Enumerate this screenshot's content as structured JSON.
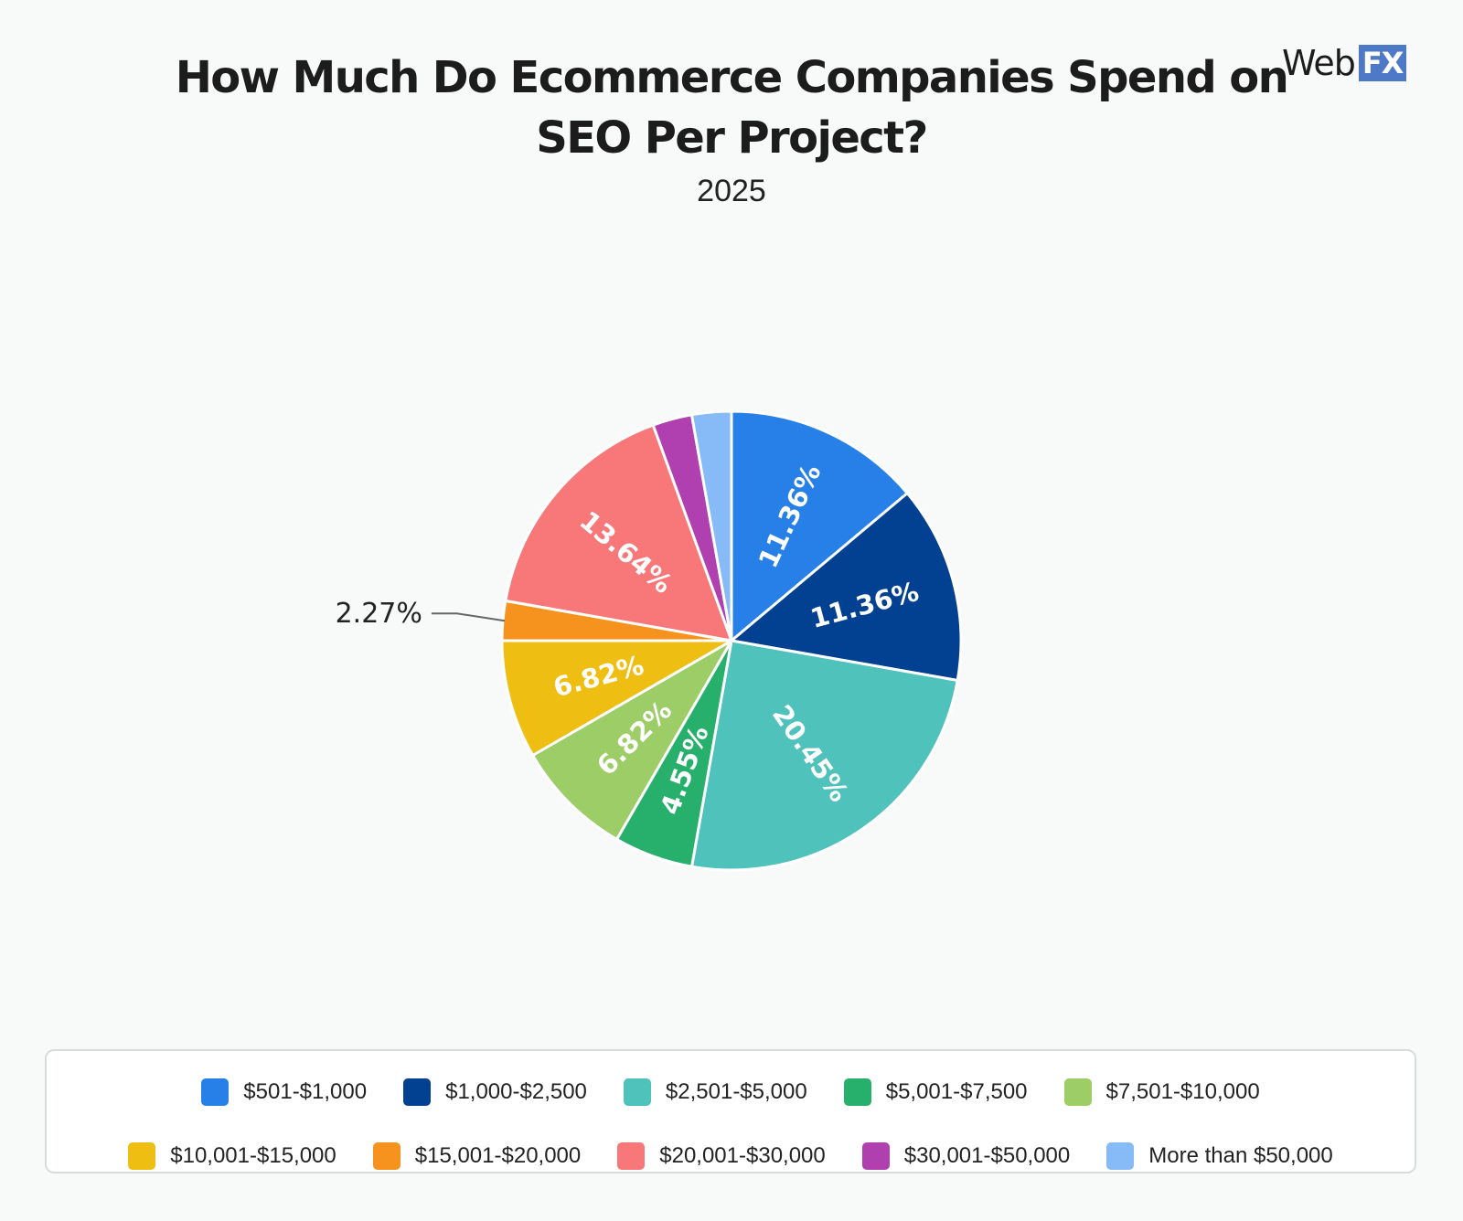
{
  "brand": {
    "web": "Web",
    "fx": "FX"
  },
  "chart_data": {
    "type": "pie",
    "title": "How Much Do Ecommerce Companies Spend on SEO Per Project?",
    "subtitle": "2025",
    "legend_position": "bottom",
    "slices": [
      {
        "label": "$501-$1,000",
        "value": 11.36,
        "display": "11.36%",
        "color": "#2680e8",
        "label_text_color": "#ffffff"
      },
      {
        "label": "$1,000-$2,500",
        "value": 11.36,
        "display": "11.36%",
        "color": "#024191",
        "label_text_color": "#ffffff"
      },
      {
        "label": "$2,501-$5,000",
        "value": 20.45,
        "display": "20.45%",
        "color": "#4fc2bb",
        "label_text_color": "#ffffff"
      },
      {
        "label": "$5,001-$7,500",
        "value": 4.55,
        "display": "4.55%",
        "color": "#26b06c",
        "label_text_color": "#ffffff"
      },
      {
        "label": "$7,501-$10,000",
        "value": 6.82,
        "display": "6.82%",
        "color": "#9ccd67",
        "label_text_color": "#ffffff"
      },
      {
        "label": "$10,001-$15,000",
        "value": 6.82,
        "display": "6.82%",
        "color": "#efbe12",
        "label_text_color": "#ffffff"
      },
      {
        "label": "$15,001-$20,000",
        "value": 2.27,
        "display": "2.27%",
        "color": "#f6931e",
        "label_text_color": "#222222"
      },
      {
        "label": "$20,001-$30,000",
        "value": 13.64,
        "display": "13.64%",
        "color": "#f87778",
        "label_text_color": "#ffffff"
      },
      {
        "label": "$30,001-$50,000",
        "value": 2.27,
        "display": "",
        "color": "#b03fb0",
        "label_text_color": "#ffffff"
      },
      {
        "label": "More than $50,000",
        "value": 2.27,
        "display": "",
        "color": "#86bbf7",
        "label_text_color": "#ffffff"
      }
    ]
  }
}
